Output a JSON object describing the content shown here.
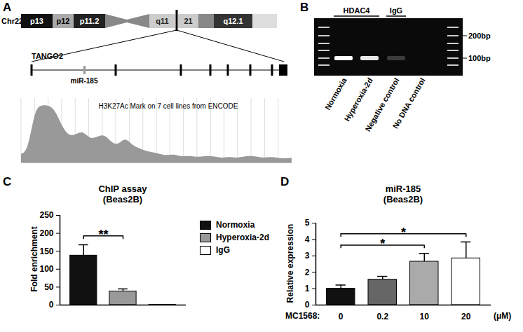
{
  "diagram": {
    "panel": "A",
    "chromosome": "Chr22",
    "bands": [
      "p13",
      "p12",
      "p11.2",
      "q11",
      "21",
      "q12.1"
    ],
    "gene": "TANGO2",
    "mirna": "miR-185",
    "track_title": "H3K27Ac Mark on 7 cell lines from ENCODE",
    "track_signal": [
      0.15,
      0.2,
      0.95,
      1,
      1,
      0.9,
      0.6,
      0.45,
      0.5,
      0.55,
      0.4,
      0.45,
      0.5,
      0.35,
      0.3,
      0.45,
      0.3,
      0.25,
      0.2,
      0.18,
      0.15,
      0.12,
      0.15,
      0.1,
      0.12,
      0.1,
      0.1,
      0.12,
      0.1,
      0.08,
      0.1,
      0.08,
      0.1,
      0.12,
      0.1,
      0.08,
      0.1,
      0.08,
      0.07,
      0.08
    ]
  },
  "gel": {
    "panel": "B",
    "groups": [
      {
        "label": "HDAC4",
        "lanes": 2
      },
      {
        "label": "IgG",
        "lanes": 1
      }
    ],
    "lanes": [
      "Normoxia",
      "Hyperoxia-2d",
      "Negative control",
      "No DNA control"
    ],
    "band_intensity": [
      1,
      0.9,
      0.2,
      0
    ],
    "markers": [
      "200bp",
      "100bp"
    ]
  },
  "chart_data": [
    {
      "panel": "C",
      "type": "bar",
      "title": "ChIP assay",
      "subtitle": "(Beas2B)",
      "ylabel": "Fold enrichment",
      "categories": [
        "Normoxia",
        "Hyperoxia-2d",
        "IgG"
      ],
      "values": [
        138,
        38,
        1
      ],
      "errors": [
        30,
        7,
        0.5
      ],
      "colors": [
        "#111111",
        "#999999",
        "#ffffff"
      ],
      "ylim": [
        0,
        250
      ],
      "yticks": [
        0,
        50,
        100,
        150,
        200,
        250
      ],
      "tick_labels": "y",
      "legend": "right",
      "annotations": [
        {
          "text": "**",
          "from": 0,
          "to": 1
        }
      ]
    },
    {
      "panel": "D",
      "type": "bar",
      "title": "miR-185",
      "subtitle": "(Beas2B)",
      "ylabel": "Relative expression",
      "xlabel": "MC1568:",
      "xunit": "(μM)",
      "categories": [
        "0",
        "0.2",
        "10",
        "20"
      ],
      "values": [
        1,
        1.55,
        2.65,
        2.85
      ],
      "errors": [
        0.22,
        0.2,
        0.5,
        1.0
      ],
      "colors": [
        "#111111",
        "#666666",
        "#aaaaaa",
        "#ffffff"
      ],
      "ylim": [
        0,
        5
      ],
      "yticks": [
        0,
        1,
        2,
        3,
        4,
        5
      ],
      "annotations": [
        {
          "text": "*",
          "from": 0,
          "to": 2
        },
        {
          "text": "*",
          "from": 0,
          "to": 3
        }
      ]
    }
  ]
}
